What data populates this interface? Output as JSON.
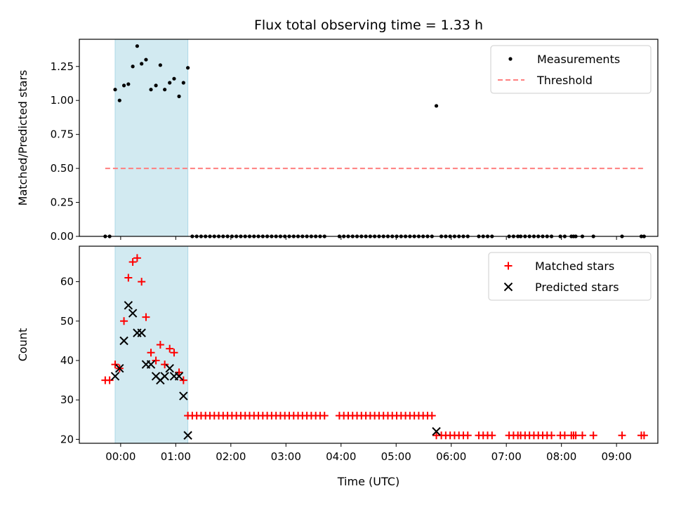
{
  "chart_data": {
    "title": "Flux total observing time = 1.33 h",
    "type": "scatter",
    "xlabel": "Time (UTC)",
    "x_ticks": [
      "00:00",
      "01:00",
      "02:00",
      "03:00",
      "04:00",
      "05:00",
      "06:00",
      "07:00",
      "08:00",
      "09:00"
    ],
    "x_tick_hours": [
      0,
      1,
      2,
      3,
      4,
      5,
      6,
      7,
      8,
      9
    ],
    "xlim_hours": [
      -0.75,
      9.75
    ],
    "shaded_interval_hours": [
      -0.1,
      1.22
    ],
    "shade_color": "#add8e6",
    "panels": [
      {
        "id": "ratio",
        "ylabel": "Matched/Predicted stars",
        "ylim": [
          0,
          1.45
        ],
        "y_ticks": [
          "0.00",
          "0.25",
          "0.50",
          "0.75",
          "1.00",
          "1.25"
        ],
        "y_tick_values": [
          0,
          0.25,
          0.5,
          0.75,
          1.0,
          1.25
        ],
        "legend_position": "upper right",
        "legend": [
          {
            "label": "Measurements",
            "marker": "dot",
            "color": "#000000"
          },
          {
            "label": "Threshold",
            "marker": "dashed-line",
            "color": "#ff7f7f"
          }
        ],
        "threshold": {
          "y": 0.5,
          "x_start_hours": -0.28,
          "x_end_hours": 9.5,
          "color": "#ff7f7f"
        },
        "series": [
          {
            "name": "Measurements",
            "marker": "dot",
            "color": "#000000",
            "points": [
              [
                -0.28,
                0
              ],
              [
                -0.2,
                0
              ],
              [
                -0.1,
                1.08
              ],
              [
                -0.02,
                1.0
              ],
              [
                0.06,
                1.11
              ],
              [
                0.14,
                1.12
              ],
              [
                0.22,
                1.25
              ],
              [
                0.3,
                1.4
              ],
              [
                0.38,
                1.27
              ],
              [
                0.46,
                1.3
              ],
              [
                0.55,
                1.08
              ],
              [
                0.64,
                1.11
              ],
              [
                0.72,
                1.26
              ],
              [
                0.8,
                1.08
              ],
              [
                0.89,
                1.13
              ],
              [
                0.97,
                1.16
              ],
              [
                1.06,
                1.03
              ],
              [
                1.14,
                1.13
              ],
              [
                1.22,
                1.24
              ],
              [
                1.3,
                0
              ],
              [
                1.38,
                0
              ],
              [
                1.46,
                0
              ],
              [
                1.54,
                0
              ],
              [
                1.62,
                0
              ],
              [
                1.7,
                0
              ],
              [
                1.78,
                0
              ],
              [
                1.86,
                0
              ],
              [
                1.94,
                0
              ],
              [
                2.02,
                0
              ],
              [
                2.1,
                0
              ],
              [
                2.18,
                0
              ],
              [
                2.26,
                0
              ],
              [
                2.34,
                0
              ],
              [
                2.42,
                0
              ],
              [
                2.5,
                0
              ],
              [
                2.58,
                0
              ],
              [
                2.66,
                0
              ],
              [
                2.74,
                0
              ],
              [
                2.82,
                0
              ],
              [
                2.9,
                0
              ],
              [
                2.98,
                0
              ],
              [
                3.06,
                0
              ],
              [
                3.14,
                0
              ],
              [
                3.22,
                0
              ],
              [
                3.3,
                0
              ],
              [
                3.38,
                0
              ],
              [
                3.46,
                0
              ],
              [
                3.54,
                0
              ],
              [
                3.62,
                0
              ],
              [
                3.7,
                0
              ],
              [
                3.97,
                0
              ],
              [
                4.05,
                0
              ],
              [
                4.13,
                0
              ],
              [
                4.21,
                0
              ],
              [
                4.29,
                0
              ],
              [
                4.37,
                0
              ],
              [
                4.45,
                0
              ],
              [
                4.53,
                0
              ],
              [
                4.61,
                0
              ],
              [
                4.69,
                0
              ],
              [
                4.77,
                0
              ],
              [
                4.85,
                0
              ],
              [
                4.93,
                0
              ],
              [
                5.01,
                0
              ],
              [
                5.09,
                0
              ],
              [
                5.17,
                0
              ],
              [
                5.25,
                0
              ],
              [
                5.33,
                0
              ],
              [
                5.41,
                0
              ],
              [
                5.49,
                0
              ],
              [
                5.57,
                0
              ],
              [
                5.65,
                0
              ],
              [
                5.73,
                0.96
              ],
              [
                5.82,
                0
              ],
              [
                5.9,
                0
              ],
              [
                5.98,
                0
              ],
              [
                6.06,
                0
              ],
              [
                6.14,
                0
              ],
              [
                6.22,
                0
              ],
              [
                6.3,
                0
              ],
              [
                6.5,
                0
              ],
              [
                6.58,
                0
              ],
              [
                6.66,
                0
              ],
              [
                6.74,
                0
              ],
              [
                7.05,
                0
              ],
              [
                7.13,
                0
              ],
              [
                7.21,
                0
              ],
              [
                7.26,
                0
              ],
              [
                7.34,
                0
              ],
              [
                7.42,
                0
              ],
              [
                7.5,
                0
              ],
              [
                7.58,
                0
              ],
              [
                7.66,
                0
              ],
              [
                7.74,
                0
              ],
              [
                7.82,
                0
              ],
              [
                7.98,
                0
              ],
              [
                8.06,
                0
              ],
              [
                8.18,
                0
              ],
              [
                8.22,
                0
              ],
              [
                8.26,
                0
              ],
              [
                8.38,
                0
              ],
              [
                8.58,
                0
              ],
              [
                9.1,
                0
              ],
              [
                9.45,
                0
              ],
              [
                9.5,
                0
              ]
            ]
          }
        ]
      },
      {
        "id": "counts",
        "ylabel": "Count",
        "ylim": [
          19,
          69
        ],
        "y_ticks": [
          "20",
          "30",
          "40",
          "50",
          "60"
        ],
        "y_tick_values": [
          20,
          30,
          40,
          50,
          60
        ],
        "legend_position": "upper right",
        "legend": [
          {
            "label": "Matched stars",
            "marker": "plus",
            "color": "#ff0000"
          },
          {
            "label": "Predicted stars",
            "marker": "x",
            "color": "#000000"
          }
        ],
        "series": [
          {
            "name": "Matched stars",
            "marker": "plus",
            "color": "#ff0000",
            "points": [
              [
                -0.28,
                35
              ],
              [
                -0.2,
                35
              ],
              [
                -0.1,
                39
              ],
              [
                -0.02,
                38
              ],
              [
                0.06,
                50
              ],
              [
                0.14,
                61
              ],
              [
                0.22,
                65
              ],
              [
                0.3,
                66
              ],
              [
                0.38,
                60
              ],
              [
                0.46,
                51
              ],
              [
                0.55,
                42
              ],
              [
                0.64,
                40
              ],
              [
                0.72,
                44
              ],
              [
                0.8,
                39
              ],
              [
                0.89,
                43
              ],
              [
                0.97,
                42
              ],
              [
                1.06,
                37
              ],
              [
                1.14,
                35
              ],
              [
                1.22,
                26
              ],
              [
                1.3,
                26
              ],
              [
                1.38,
                26
              ],
              [
                1.46,
                26
              ],
              [
                1.54,
                26
              ],
              [
                1.62,
                26
              ],
              [
                1.7,
                26
              ],
              [
                1.78,
                26
              ],
              [
                1.86,
                26
              ],
              [
                1.94,
                26
              ],
              [
                2.02,
                26
              ],
              [
                2.1,
                26
              ],
              [
                2.18,
                26
              ],
              [
                2.26,
                26
              ],
              [
                2.34,
                26
              ],
              [
                2.42,
                26
              ],
              [
                2.5,
                26
              ],
              [
                2.58,
                26
              ],
              [
                2.66,
                26
              ],
              [
                2.74,
                26
              ],
              [
                2.82,
                26
              ],
              [
                2.9,
                26
              ],
              [
                2.98,
                26
              ],
              [
                3.06,
                26
              ],
              [
                3.14,
                26
              ],
              [
                3.22,
                26
              ],
              [
                3.3,
                26
              ],
              [
                3.38,
                26
              ],
              [
                3.46,
                26
              ],
              [
                3.54,
                26
              ],
              [
                3.62,
                26
              ],
              [
                3.7,
                26
              ],
              [
                3.97,
                26
              ],
              [
                4.05,
                26
              ],
              [
                4.13,
                26
              ],
              [
                4.21,
                26
              ],
              [
                4.29,
                26
              ],
              [
                4.37,
                26
              ],
              [
                4.45,
                26
              ],
              [
                4.53,
                26
              ],
              [
                4.61,
                26
              ],
              [
                4.69,
                26
              ],
              [
                4.77,
                26
              ],
              [
                4.85,
                26
              ],
              [
                4.93,
                26
              ],
              [
                5.01,
                26
              ],
              [
                5.09,
                26
              ],
              [
                5.17,
                26
              ],
              [
                5.25,
                26
              ],
              [
                5.33,
                26
              ],
              [
                5.41,
                26
              ],
              [
                5.49,
                26
              ],
              [
                5.57,
                26
              ],
              [
                5.65,
                26
              ],
              [
                5.73,
                21
              ],
              [
                5.82,
                21
              ],
              [
                5.9,
                21
              ],
              [
                5.98,
                21
              ],
              [
                6.06,
                21
              ],
              [
                6.14,
                21
              ],
              [
                6.22,
                21
              ],
              [
                6.3,
                21
              ],
              [
                6.5,
                21
              ],
              [
                6.58,
                21
              ],
              [
                6.66,
                21
              ],
              [
                6.74,
                21
              ],
              [
                7.05,
                21
              ],
              [
                7.13,
                21
              ],
              [
                7.21,
                21
              ],
              [
                7.26,
                21
              ],
              [
                7.34,
                21
              ],
              [
                7.42,
                21
              ],
              [
                7.5,
                21
              ],
              [
                7.58,
                21
              ],
              [
                7.66,
                21
              ],
              [
                7.74,
                21
              ],
              [
                7.82,
                21
              ],
              [
                7.98,
                21
              ],
              [
                8.06,
                21
              ],
              [
                8.18,
                21
              ],
              [
                8.22,
                21
              ],
              [
                8.26,
                21
              ],
              [
                8.38,
                21
              ],
              [
                8.58,
                21
              ],
              [
                9.1,
                21
              ],
              [
                9.45,
                21
              ],
              [
                9.5,
                21
              ]
            ]
          },
          {
            "name": "Predicted stars",
            "marker": "x",
            "color": "#000000",
            "points": [
              [
                -0.1,
                36
              ],
              [
                -0.02,
                38
              ],
              [
                0.06,
                45
              ],
              [
                0.14,
                54
              ],
              [
                0.22,
                52
              ],
              [
                0.3,
                47
              ],
              [
                0.38,
                47
              ],
              [
                0.46,
                39
              ],
              [
                0.55,
                39
              ],
              [
                0.64,
                36
              ],
              [
                0.72,
                35
              ],
              [
                0.8,
                36
              ],
              [
                0.89,
                38
              ],
              [
                0.97,
                36
              ],
              [
                1.06,
                36
              ],
              [
                1.14,
                31
              ],
              [
                1.22,
                21
              ],
              [
                5.73,
                22
              ]
            ]
          }
        ]
      }
    ]
  }
}
